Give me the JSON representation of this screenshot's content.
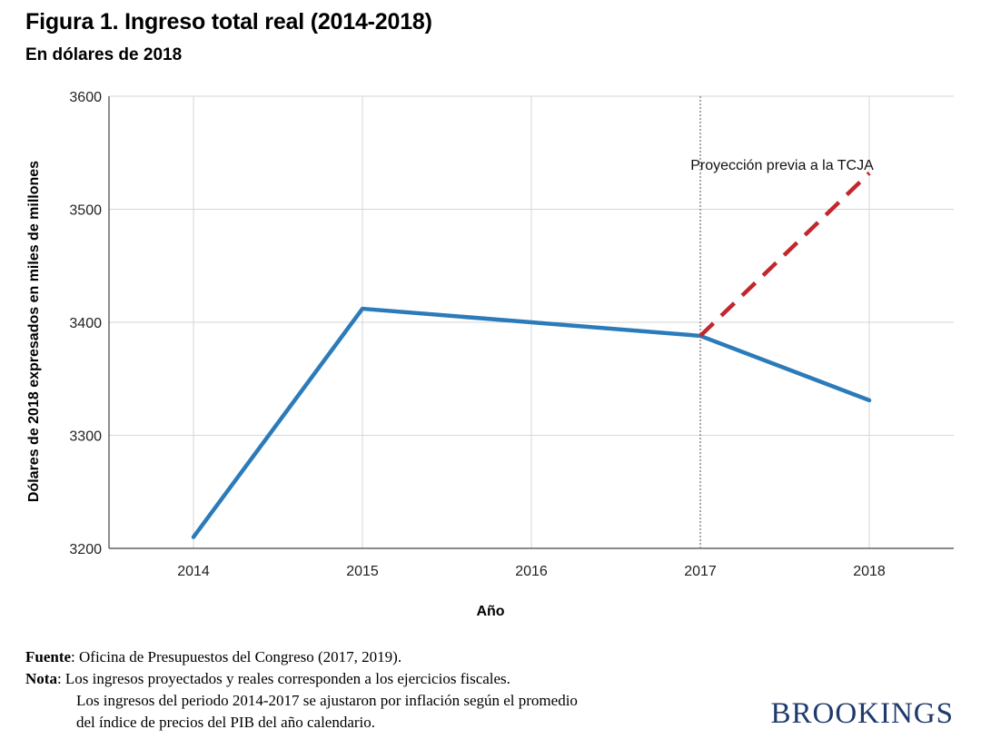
{
  "header": {
    "title": "Figura 1. Ingreso total real (2014-2018)",
    "subtitle": "En dólares de 2018"
  },
  "chart_data": {
    "type": "line",
    "title": "Figura 1. Ingreso total real (2014-2018)",
    "subtitle": "En dólares de 2018",
    "xlabel": "Año",
    "ylabel": "Dólares de 2018 expresados en miles de millones",
    "x": [
      2014,
      2015,
      2016,
      2017,
      2018
    ],
    "x_tick_labels": [
      "2014",
      "2015",
      "2016",
      "2017",
      "2018"
    ],
    "y_tick_labels": [
      "3200",
      "3300",
      "3400",
      "3500",
      "3600"
    ],
    "ylim": [
      3200,
      3600
    ],
    "grid": true,
    "series": [
      {
        "values": [
          3210,
          3412,
          3400,
          3388,
          3331
        ],
        "color": "#2b7bba",
        "style": "solid"
      },
      {
        "name": "Proyección previa a la TCJA",
        "x": [
          2017,
          2018
        ],
        "values": [
          3388,
          3532
        ],
        "color": "#c1272d",
        "style": "dashed"
      }
    ],
    "reference_line": {
      "x": 2017,
      "style": "dotted",
      "color": "#888888"
    },
    "annotations": [
      {
        "text": "Proyección previa a la TCJA",
        "x": 2017,
        "y": 3540
      }
    ]
  },
  "footer": {
    "source_label": "Fuente",
    "source_text": ": Oficina de Presupuestos del Congreso (2017, 2019).",
    "note_label": "Nota",
    "note_line1": ": Los ingresos proyectados y reales corresponden a los ejercicios fiscales.",
    "note_line2": "Los ingresos del periodo 2014-2017 se ajustaron por inflación según el promedio",
    "note_line3": "del índice de precios del PIB del año calendario."
  },
  "brand": {
    "logo_text": "BROOKINGS",
    "logo_color": "#1f3a6d"
  }
}
